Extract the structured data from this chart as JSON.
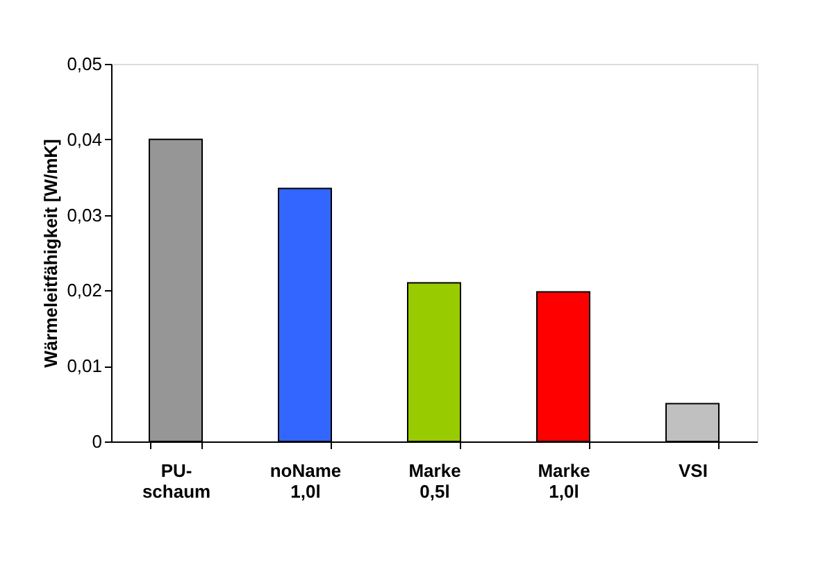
{
  "chart_data": {
    "type": "bar",
    "ylabel": "Wärmeleitfähigkeit [W/mK]",
    "categories": [
      "PU-\nschaum",
      "noName\n1,0l",
      "Marke\n0,5l",
      "Marke\n1,0l",
      "VSI"
    ],
    "values": [
      0.04,
      0.0335,
      0.021,
      0.0198,
      0.005
    ],
    "colors": [
      "#969696",
      "#3366ff",
      "#99cc00",
      "#ff0000",
      "#c0c0c0"
    ],
    "ylim": [
      0,
      0.05
    ],
    "yticks": [
      0,
      {
        "value": 0.01,
        "label": "0,01"
      },
      {
        "value": 0.02,
        "label": "0,02"
      },
      {
        "value": 0.03,
        "label": "0,03"
      },
      {
        "value": 0.04,
        "label": "0,04"
      },
      {
        "value": 0.05,
        "label": "0,05"
      }
    ],
    "grid": false
  }
}
